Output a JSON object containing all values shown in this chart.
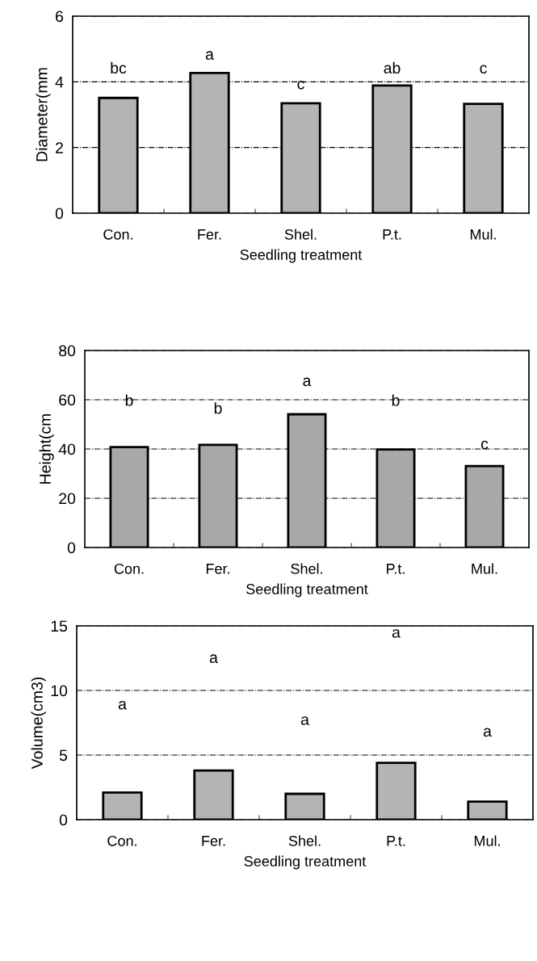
{
  "chart_data": [
    {
      "type": "bar",
      "categories": [
        "Con.",
        "Fer.",
        "Shel.",
        "P.t.",
        "Mul."
      ],
      "values": [
        3.51,
        4.27,
        3.35,
        3.89,
        3.33
      ],
      "color": "#b4b4b4",
      "xlabel": "Seedling treatment",
      "ylabel": "Diameter(mm",
      "ylim": [
        0,
        6
      ],
      "yticks": [
        0,
        2,
        4,
        6
      ],
      "grid": "y",
      "annotations": [
        "bc",
        "a",
        "c",
        "ab",
        "c"
      ]
    },
    {
      "type": "bar",
      "categories": [
        "Con.",
        "Fer.",
        "Shel.",
        "P.t.",
        "Mul."
      ],
      "values": [
        40.8,
        41.7,
        54.1,
        39.8,
        33.1
      ],
      "color": "#a8a8a8",
      "xlabel": "Seedling treatment",
      "ylabel": "Height(cm",
      "ylim": [
        0,
        80
      ],
      "yticks": [
        0,
        20,
        40,
        60,
        80
      ],
      "grid": "y",
      "annotations": [
        "b",
        "b",
        "a",
        "b",
        "c"
      ]
    },
    {
      "type": "bar",
      "categories": [
        "Con.",
        "Fer.",
        "Shel.",
        "P.t.",
        "Mul."
      ],
      "values": [
        2.1,
        3.8,
        2.0,
        4.4,
        1.4
      ],
      "color": "#b4b4b4",
      "xlabel": "Seedling treatment",
      "ylabel": "Volume(cm3)",
      "ylim": [
        0,
        15
      ],
      "yticks": [
        0,
        5,
        10,
        15
      ],
      "grid": "y",
      "annotations": [
        "a",
        "a",
        "a",
        "a",
        "a"
      ]
    }
  ]
}
